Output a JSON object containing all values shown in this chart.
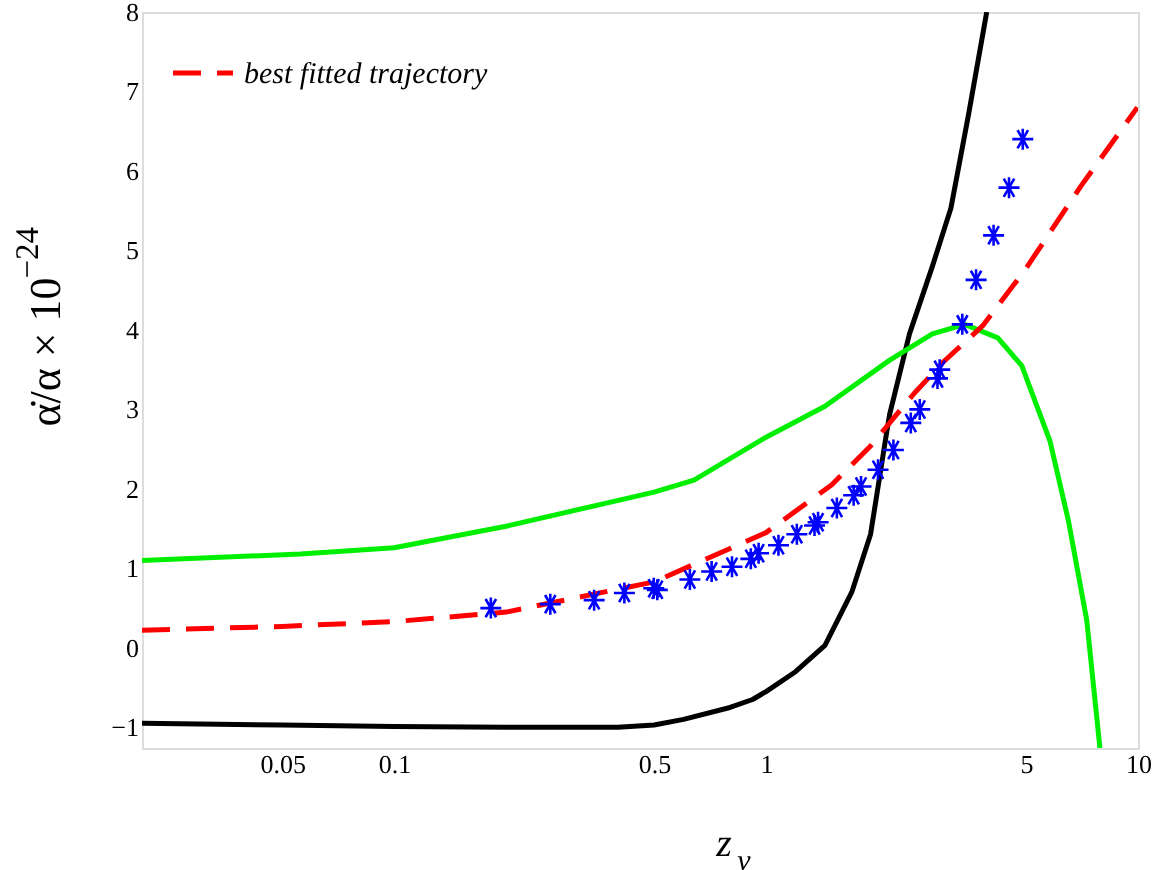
{
  "chart_data": {
    "type": "line",
    "xlabel": "z$_{v}$",
    "ylabel": "α̇/α × 10$^{−24}$",
    "xlim": [
      0.021,
      10
    ],
    "ylim": [
      -1.26,
      8
    ],
    "xticks": [
      0.05,
      0.1,
      0.5,
      1,
      5,
      10
    ],
    "yticks": [
      -1,
      0,
      1,
      2,
      3,
      4,
      5,
      6,
      7,
      8
    ],
    "log": "x",
    "grid": false,
    "legend": "top left",
    "series": [
      {
        "color": "#000000",
        "line_style": "solid",
        "x": [
          0.021,
          0.05,
          0.1,
          0.2,
          0.4,
          0.5,
          0.6,
          0.8,
          0.92,
          1,
          1.2,
          1.44,
          1.7,
          1.91,
          2.1,
          2.15,
          2.43,
          2.8,
          3.14,
          3.5,
          3.92
        ],
        "values": [
          -0.95,
          -0.97,
          -0.99,
          -1.0,
          -1.0,
          -0.97,
          -0.9,
          -0.75,
          -0.65,
          -0.55,
          -0.3,
          0.03,
          0.7,
          1.43,
          2.65,
          2.94,
          3.95,
          4.8,
          5.53,
          6.7,
          8
        ]
      },
      {
        "color": "#00ee00",
        "line_style": "solid",
        "x": [
          0.021,
          0.056,
          0.1,
          0.2,
          0.5,
          0.64,
          1,
          1.44,
          2.15,
          2.8,
          3.42,
          4.2,
          4.87,
          5.8,
          6.5,
          7.28,
          7.9
        ],
        "values": [
          1.1,
          1.18,
          1.26,
          1.53,
          1.96,
          2.11,
          2.65,
          3.04,
          3.62,
          3.95,
          4.07,
          3.9,
          3.55,
          2.6,
          1.6,
          0.35,
          -1.26
        ]
      },
      {
        "name": "best fitted trajectory",
        "color": "#ff0000",
        "line_style": "dashed",
        "x": [
          0.021,
          0.05,
          0.1,
          0.2,
          0.5,
          1,
          1.5,
          1.91,
          2.5,
          3.0,
          3.82,
          4.96,
          7,
          9.96
        ],
        "values": [
          0.22,
          0.27,
          0.33,
          0.45,
          0.83,
          1.45,
          2.05,
          2.54,
          3.2,
          3.6,
          4.05,
          4.75,
          5.8,
          6.8
        ]
      },
      {
        "type": "scatter",
        "color": "#0000ff",
        "marker": "cross",
        "x": [
          0.182,
          0.263,
          0.345,
          0.416,
          0.499,
          0.51,
          0.624,
          0.714,
          0.81,
          0.91,
          0.955,
          1.08,
          1.21,
          1.35,
          1.38,
          1.55,
          1.72,
          1.8,
          2.0,
          2.2,
          2.45,
          2.59,
          2.89,
          2.93,
          3.37,
          3.67,
          4.09,
          4.5,
          4.9
        ],
        "values": [
          0.5,
          0.55,
          0.6,
          0.69,
          0.75,
          0.73,
          0.86,
          0.96,
          1.02,
          1.12,
          1.19,
          1.29,
          1.43,
          1.54,
          1.58,
          1.76,
          1.92,
          2.03,
          2.24,
          2.49,
          2.83,
          3.0,
          3.39,
          3.5,
          4.07,
          4.63,
          5.19,
          5.79,
          6.4
        ]
      }
    ]
  }
}
